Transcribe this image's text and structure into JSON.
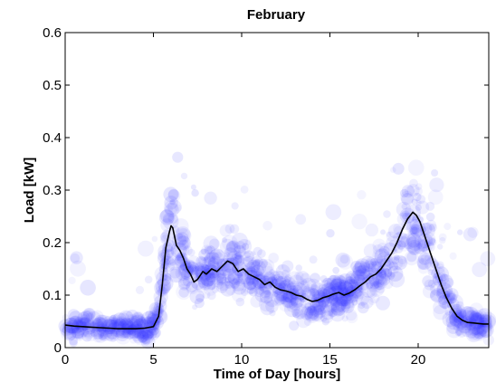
{
  "chart_data": {
    "type": "scatter",
    "title": "February",
    "xlabel": "Time of Day [hours]",
    "ylabel": "Load [kW]",
    "xlim": [
      0,
      24
    ],
    "ylim": [
      0,
      0.6
    ],
    "xticks": [
      0,
      5,
      10,
      15,
      20
    ],
    "yticks": [
      0,
      0.1,
      0.2,
      0.3,
      0.4,
      0.5,
      0.6
    ],
    "ytick_labels": [
      "0",
      "0.1",
      "0.2",
      "0.3",
      "0.4",
      "0.5",
      "0.6"
    ],
    "grid": false,
    "colors": {
      "scatter": "#3333ff",
      "line": "#000000"
    },
    "series": [
      {
        "kind": "line",
        "x": [
          0,
          0.5,
          1,
          1.5,
          2,
          2.5,
          3,
          3.5,
          4,
          4.5,
          5,
          5.3,
          5.5,
          5.7,
          5.9,
          6.0,
          6.1,
          6.3,
          6.5,
          6.7,
          6.9,
          7.1,
          7.3,
          7.5,
          7.8,
          8.0,
          8.3,
          8.6,
          8.9,
          9.2,
          9.5,
          9.8,
          10.1,
          10.4,
          10.7,
          11.0,
          11.3,
          11.6,
          11.9,
          12.2,
          12.5,
          12.8,
          13.1,
          13.4,
          13.7,
          14.0,
          14.3,
          14.6,
          14.9,
          15.2,
          15.5,
          15.8,
          16.1,
          16.4,
          16.7,
          17.0,
          17.3,
          17.6,
          17.9,
          18.2,
          18.5,
          18.8,
          19.1,
          19.4,
          19.7,
          19.9,
          20.1,
          20.4,
          20.7,
          21.0,
          21.3,
          21.6,
          21.9,
          22.2,
          22.5,
          22.8,
          23.1,
          23.4,
          23.7,
          24.0
        ],
        "y": [
          0.043,
          0.041,
          0.04,
          0.039,
          0.038,
          0.037,
          0.036,
          0.036,
          0.036,
          0.037,
          0.04,
          0.06,
          0.12,
          0.19,
          0.22,
          0.232,
          0.228,
          0.195,
          0.185,
          0.17,
          0.15,
          0.14,
          0.125,
          0.13,
          0.145,
          0.14,
          0.15,
          0.145,
          0.155,
          0.165,
          0.16,
          0.145,
          0.15,
          0.14,
          0.135,
          0.13,
          0.12,
          0.125,
          0.115,
          0.11,
          0.108,
          0.105,
          0.1,
          0.098,
          0.092,
          0.088,
          0.09,
          0.095,
          0.098,
          0.102,
          0.105,
          0.1,
          0.104,
          0.11,
          0.118,
          0.125,
          0.135,
          0.14,
          0.15,
          0.165,
          0.18,
          0.2,
          0.225,
          0.245,
          0.258,
          0.252,
          0.24,
          0.21,
          0.18,
          0.15,
          0.12,
          0.095,
          0.075,
          0.06,
          0.052,
          0.048,
          0.047,
          0.046,
          0.045,
          0.045
        ]
      }
    ]
  }
}
